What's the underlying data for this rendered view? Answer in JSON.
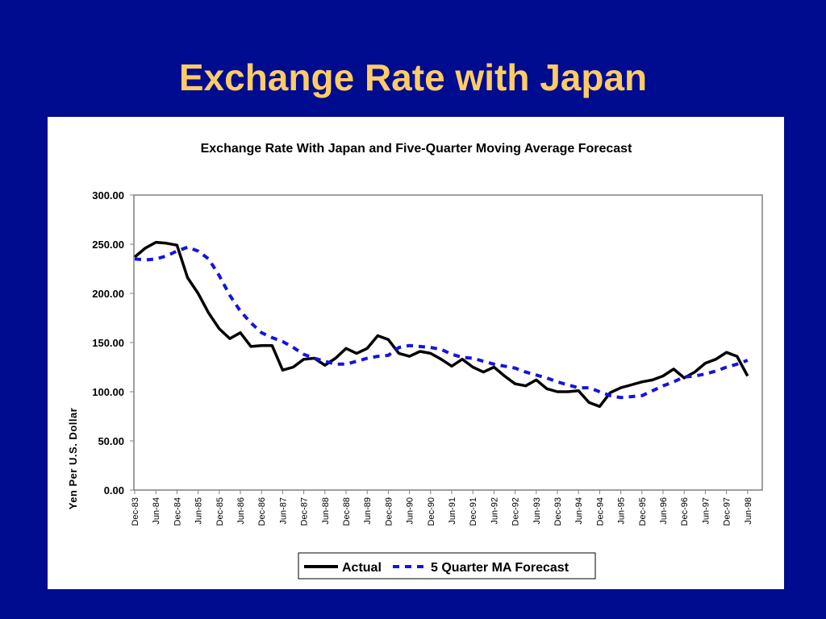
{
  "slide": {
    "title": "Exchange Rate with Japan"
  },
  "colors": {
    "background": "#000c8f",
    "title": "#ffcc66",
    "actual": "#000000",
    "forecast": "#1414dc"
  },
  "chart_data": {
    "type": "line",
    "title": "Exchange Rate With Japan and Five-Quarter Moving Average Forecast",
    "xlabel": "",
    "ylabel": "Yen Per U.S.  Dollar",
    "ylim": [
      0,
      300
    ],
    "yticks": [
      "0.00",
      "50.00",
      "100.00",
      "150.00",
      "200.00",
      "250.00",
      "300.00"
    ],
    "grid": false,
    "legend_position": "bottom",
    "x_tick_labels": [
      "Dec-83",
      "Jun-84",
      "Dec-84",
      "Jun-85",
      "Dec-85",
      "Jun-86",
      "Dec-86",
      "Jun-87",
      "Dec-87",
      "Jun-88",
      "Dec-88",
      "Jun-89",
      "Dec-89",
      "Jun-90",
      "Dec-90",
      "Jun-91",
      "Dec-91",
      "Jun-92",
      "Dec-92",
      "Jun-93",
      "Dec-93",
      "Jun-94",
      "Dec-94",
      "Jun-95",
      "Dec-95",
      "Jun-96",
      "Dec-96",
      "Jun-97",
      "Dec-97",
      "Jun-98"
    ],
    "x": [
      "Dec-83",
      "Mar-84",
      "Jun-84",
      "Sep-84",
      "Dec-84",
      "Mar-85",
      "Jun-85",
      "Sep-85",
      "Dec-85",
      "Mar-86",
      "Jun-86",
      "Sep-86",
      "Dec-86",
      "Mar-87",
      "Jun-87",
      "Sep-87",
      "Dec-87",
      "Mar-88",
      "Jun-88",
      "Sep-88",
      "Dec-88",
      "Mar-89",
      "Jun-89",
      "Sep-89",
      "Dec-89",
      "Mar-90",
      "Jun-90",
      "Sep-90",
      "Dec-90",
      "Mar-91",
      "Jun-91",
      "Sep-91",
      "Dec-91",
      "Mar-92",
      "Jun-92",
      "Sep-92",
      "Dec-92",
      "Mar-93",
      "Jun-93",
      "Sep-93",
      "Dec-93",
      "Mar-94",
      "Jun-94",
      "Sep-94",
      "Dec-94",
      "Mar-95",
      "Jun-95",
      "Sep-95",
      "Dec-95",
      "Mar-96",
      "Jun-96",
      "Sep-96",
      "Dec-96",
      "Mar-97",
      "Jun-97",
      "Sep-97",
      "Dec-97",
      "Mar-98",
      "Jun-98"
    ],
    "series": [
      {
        "name": "Actual",
        "style": "solid",
        "values": [
          237,
          246,
          252,
          251,
          249,
          216,
          200,
          180,
          164,
          154,
          160,
          146,
          147,
          147,
          122,
          125,
          133,
          134,
          127,
          134,
          144,
          139,
          144,
          157,
          153,
          139,
          136,
          141,
          139,
          133,
          126,
          133,
          125,
          120,
          125,
          116,
          108,
          106,
          112,
          103,
          100,
          100,
          101,
          89,
          85,
          99,
          104,
          107,
          110,
          112,
          116,
          123,
          114,
          120,
          129,
          133,
          140,
          136,
          116
        ],
        "color": "#000000"
      },
      {
        "name": "5 Quarter MA Forecast",
        "style": "dashed",
        "values": [
          235,
          234,
          235,
          238,
          243,
          247,
          243,
          235,
          218,
          198,
          182,
          170,
          160,
          155,
          151,
          145,
          138,
          134,
          131,
          128,
          128,
          131,
          134,
          136,
          137,
          145,
          147,
          146,
          145,
          143,
          138,
          135,
          134,
          131,
          128,
          126,
          124,
          120,
          117,
          114,
          110,
          107,
          104,
          104,
          100,
          96,
          94,
          95,
          96,
          101,
          106,
          110,
          115,
          116,
          118,
          121,
          125,
          128,
          132
        ],
        "color": "#1414dc"
      }
    ]
  }
}
